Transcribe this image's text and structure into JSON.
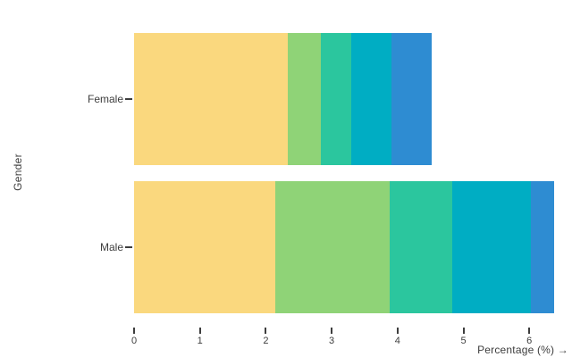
{
  "chart_data": {
    "type": "bar",
    "orientation": "horizontal",
    "stacked": true,
    "title": "",
    "xlabel": "Percentage (%) →",
    "ylabel": "Gender",
    "categories": [
      "Female",
      "Male"
    ],
    "series": [
      {
        "color": "#fad87e",
        "values": [
          2.33,
          2.14
        ]
      },
      {
        "color": "#8fd377",
        "values": [
          0.5,
          1.74
        ]
      },
      {
        "color": "#2bc69e",
        "values": [
          0.47,
          0.95
        ]
      },
      {
        "color": "#00adc3",
        "values": [
          0.61,
          1.2
        ]
      },
      {
        "color": "#2e8cd2",
        "values": [
          0.61,
          0.35
        ]
      }
    ],
    "x_ticks": [
      0,
      1,
      2,
      3,
      4,
      5,
      6
    ],
    "xlim": [
      0,
      6.65
    ],
    "grid": false,
    "legend": "none"
  }
}
